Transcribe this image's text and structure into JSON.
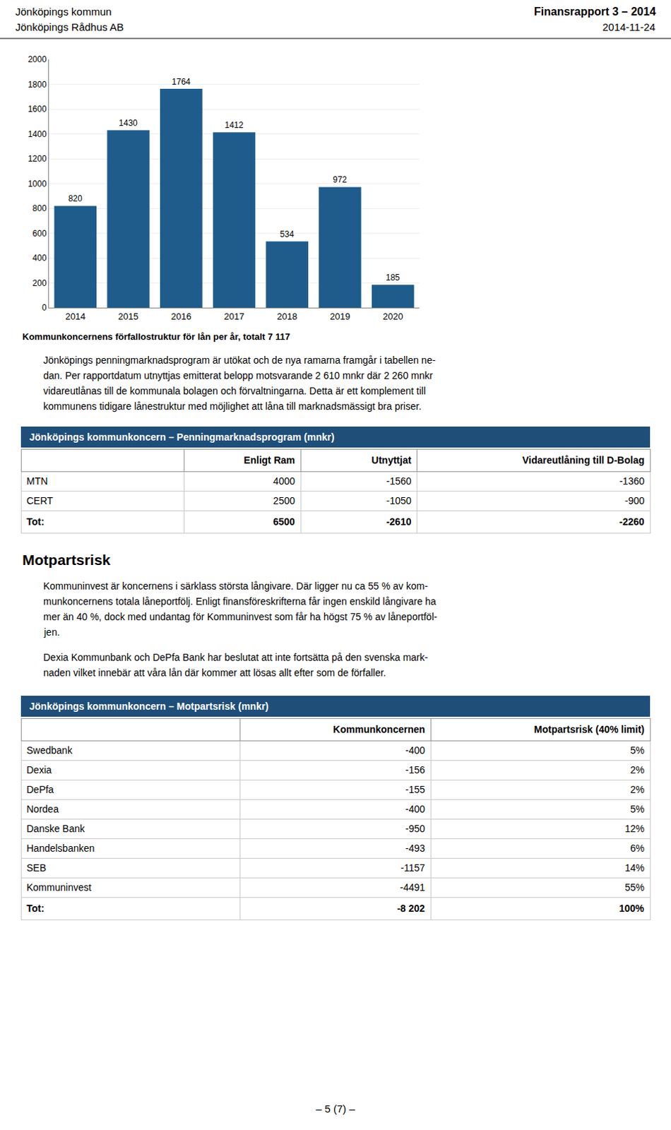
{
  "chart_data": [
    {
      "type": "bar",
      "title": "Kommunkoncernens förfallostruktur för lån per år, totalt 7 117",
      "categories": [
        "2014",
        "2015",
        "2016",
        "2017",
        "2018",
        "2019",
        "2020"
      ],
      "values": [
        820,
        1430,
        1764,
        1412,
        534,
        972,
        185
      ],
      "color": "#1F5C8B",
      "ylim": [
        0,
        2000
      ],
      "yticks": [
        0,
        200,
        400,
        600,
        800,
        1000,
        1200,
        1400,
        1600,
        1800,
        2000
      ],
      "grid": true,
      "data_labels": true,
      "annotations": [
        "Jönköpings kommun",
        "Jönköpings Rådhus AB",
        "Finansrapport 3 – 2014",
        "2014-11-24",
        "– 5 (7) –"
      ]
    },
    {
      "type": "table",
      "title": "Jönköpings kommunkoncern – Penningmarknadsprogram (mnkr)",
      "color": "#1F4E79",
      "annotations": [
        "Jönköpings penningmarknadsprogram är utökat och de nya ramarna framgår i tabellen ne-",
        "dan. Per rapportdatum utnyttjas emitterat belopp motsvarande 2 610 mnkr där 2 260 mnkr",
        "vidareutlånas till de kommunala bolagen och förvaltningarna. Detta är ett komplement till",
        "kommunens tidigare lånestruktur med möjlighet att låna till marknadsmässigt bra priser."
      ],
      "columns": [
        null,
        "Enligt Ram",
        "Utnyttjat",
        "Vidareutlåning till D-Bolag"
      ],
      "rows": [
        [
          "MTN",
          "4000",
          "-1560",
          "-1360"
        ],
        [
          "CERT",
          "2500",
          "-1050",
          "-900"
        ],
        [
          "Tot:",
          "6500",
          "-2610",
          "-2260"
        ]
      ]
    },
    {
      "type": "table",
      "subtitle": "Motpartsrisk",
      "title": "Jönköpings kommunkoncern – Motpartsrisk (mnkr)",
      "color": "#1F4E79",
      "annotations": [
        "Kommuninvest är koncernens i särklass största långivare. Där ligger nu ca 55 % av kom-",
        "munkoncernens totala låneportfölj. Enligt finansföreskrifterna får ingen enskild långivare ha",
        "mer än 40 %, dock med undantag för Kommuninvest som får ha högst 75 % av låneportföl-",
        "jen.",
        "Dexia Kommunbank och DePfa Bank har beslutat att inte fortsätta på den svenska mark-",
        "naden vilket innebär att våra lån där kommer att lösas allt efter som de förfaller."
      ],
      "columns": [
        null,
        "Kommunkoncernen",
        "Motpartsrisk (40% limit)"
      ],
      "rows": [
        [
          "Swedbank",
          "-400",
          "5%"
        ],
        [
          "Dexia",
          "-156",
          "2%"
        ],
        [
          "DePfa",
          "-155",
          "2%"
        ],
        [
          "Nordea",
          "-400",
          "5%"
        ],
        [
          "Danske Bank",
          "-950",
          "12%"
        ],
        [
          "Handelsbanken",
          "-493",
          "6%"
        ],
        [
          "SEB",
          "-1157",
          "14%"
        ],
        [
          "Kommuninvest",
          "-4491",
          "55%"
        ],
        [
          "Tot:",
          "-8 202",
          "100%"
        ]
      ]
    }
  ]
}
